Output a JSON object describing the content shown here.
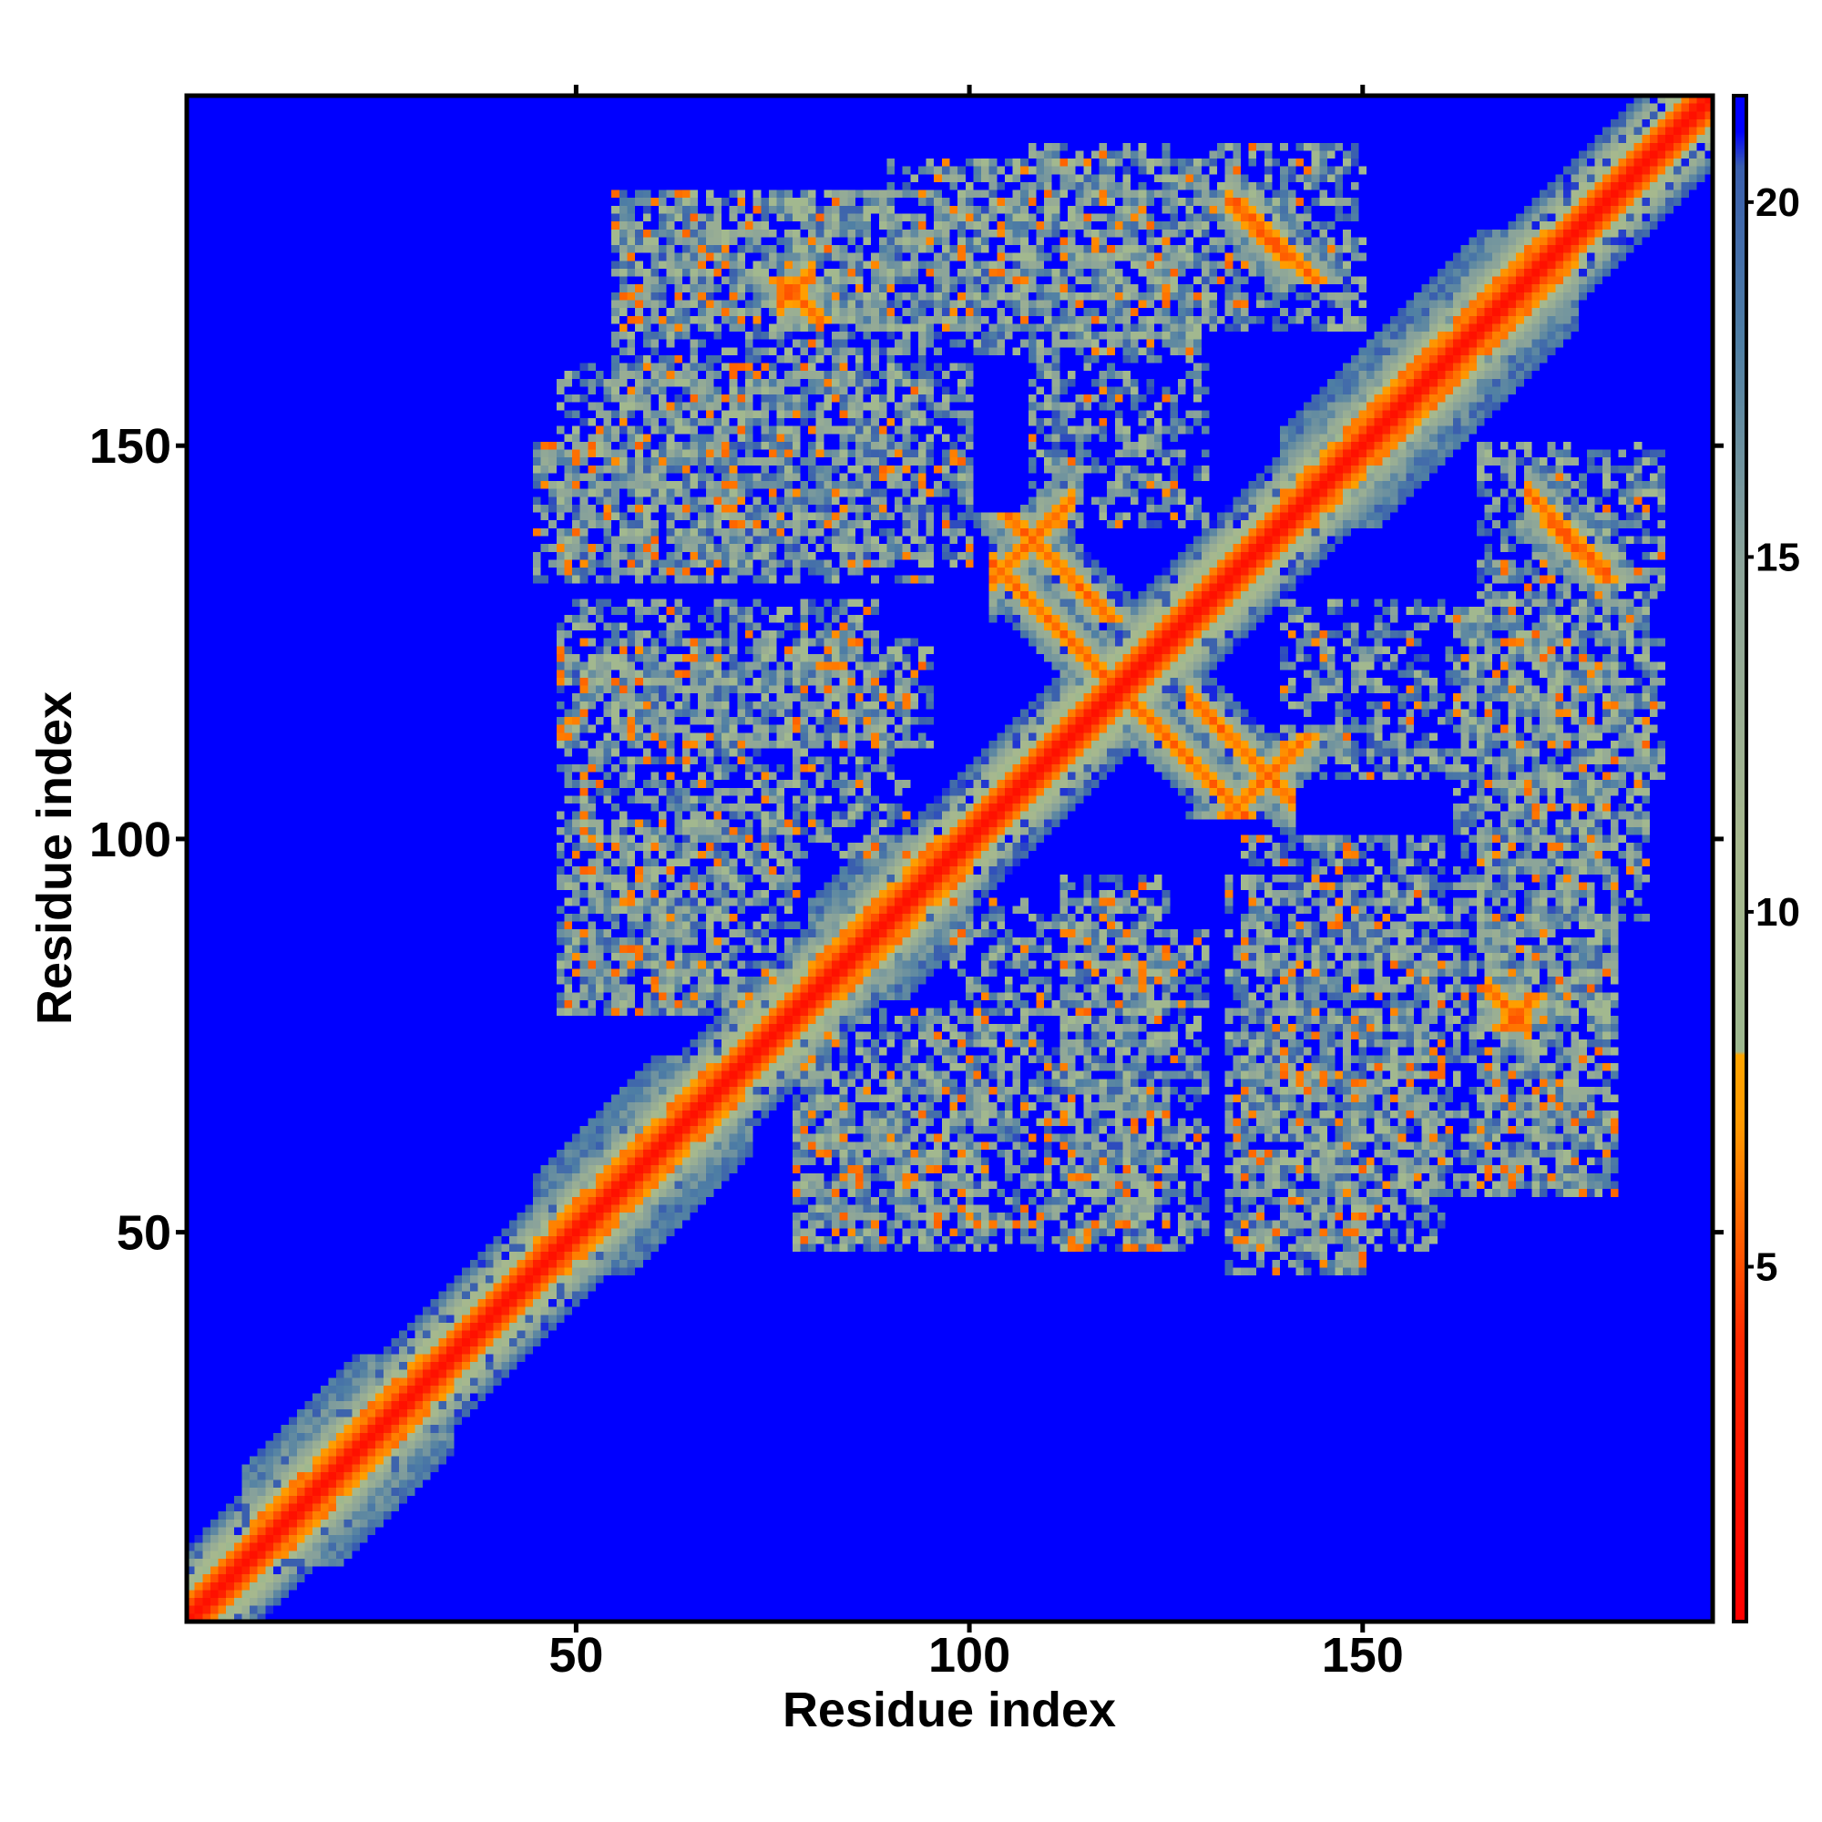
{
  "chart_data": {
    "type": "heatmap",
    "title": "",
    "xlabel": "Residue index",
    "ylabel": "Residue index",
    "xlim": [
      1,
      194
    ],
    "ylim": [
      1,
      194
    ],
    "x_ticks": [
      50,
      100,
      150
    ],
    "x_tick_labels": [
      "50",
      "100",
      "150"
    ],
    "y_ticks": [
      50,
      100,
      150
    ],
    "y_tick_labels": [
      "50",
      "100",
      "150"
    ],
    "n_residues": 194,
    "colorbar": {
      "range": [
        0,
        21.5
      ],
      "ticks": [
        5,
        10,
        15,
        20
      ],
      "tick_labels": [
        "5",
        "10",
        "15",
        "20"
      ],
      "stops": [
        {
          "value": 0,
          "color": "#ff0000"
        },
        {
          "value": 4,
          "color": "#ff2a00"
        },
        {
          "value": 7,
          "color": "#ff9900"
        },
        {
          "value": 8,
          "color": "#ffa500"
        },
        {
          "value": 8.01,
          "color": "#9db88f"
        },
        {
          "value": 11,
          "color": "#a7b88e"
        },
        {
          "value": 15,
          "color": "#8aa39a"
        },
        {
          "value": 18,
          "color": "#4f7fa4"
        },
        {
          "value": 20.5,
          "color": "#3a5fae"
        },
        {
          "value": 21,
          "color": "#0000ff"
        },
        {
          "value": 21.5,
          "color": "#0000ff"
        }
      ]
    },
    "background_color": "#0000ff",
    "features": [
      {
        "kind": "diagonal",
        "range": [
          1,
          194
        ]
      },
      {
        "kind": "helix_blob",
        "from": 45,
        "to": 70
      },
      {
        "kind": "helix_blob",
        "from": 80,
        "to": 98
      },
      {
        "kind": "helix_blob",
        "from": 8,
        "to": 32
      },
      {
        "kind": "helix_blob",
        "from": 140,
        "to": 175
      },
      {
        "kind": "antiparallel",
        "sum": 238,
        "from": 103,
        "to": 115
      },
      {
        "kind": "antiparallel",
        "sum": 238,
        "from": 115,
        "to": 127
      },
      {
        "kind": "antiparallel",
        "sum": 246,
        "from": 128,
        "to": 141
      },
      {
        "kind": "parallel",
        "offset": 30,
        "from": 103,
        "to": 113
      },
      {
        "kind": "antiparallel",
        "sum": 314,
        "from": 133,
        "to": 140
      },
      {
        "kind": "antiparallel",
        "sum": 315,
        "from": 171,
        "to": 181
      },
      {
        "kind": "antiparallel",
        "sum": 247,
        "from": 166,
        "to": 171
      },
      {
        "kind": "parallel",
        "offset": 92,
        "from": 76,
        "to": 80
      },
      {
        "kind": "diffuse",
        "x": [
          48,
          78
        ],
        "y": [
          78,
          102
        ]
      },
      {
        "kind": "diffuse",
        "x": [
          78,
          98
        ],
        "y": [
          48,
          70
        ]
      },
      {
        "kind": "diffuse",
        "x": [
          98,
          118
        ],
        "y": [
          48,
          92
        ]
      },
      {
        "kind": "diffuse",
        "x": [
          118,
          130
        ],
        "y": [
          48,
          88
        ]
      },
      {
        "kind": "diffuse",
        "x": [
          133,
          150
        ],
        "y": [
          45,
          95
        ]
      },
      {
        "kind": "diffuse",
        "x": [
          150,
          182
        ],
        "y": [
          55,
          95
        ]
      },
      {
        "kind": "diffuse",
        "x": [
          162,
          186
        ],
        "y": [
          90,
          130
        ]
      },
      {
        "kind": "diffuse",
        "x": [
          48,
          95
        ],
        "y": [
          112,
          125
        ]
      },
      {
        "kind": "diffuse",
        "x": [
          48,
          100
        ],
        "y": [
          135,
          160
        ]
      },
      {
        "kind": "diffuse",
        "x": [
          55,
          112
        ],
        "y": [
          165,
          182
        ]
      },
      {
        "kind": "diffuse",
        "x": [
          108,
          130
        ],
        "y": [
          140,
          188
        ]
      },
      {
        "kind": "diffuse",
        "x": [
          128,
          150
        ],
        "y": [
          165,
          188
        ]
      }
    ]
  }
}
